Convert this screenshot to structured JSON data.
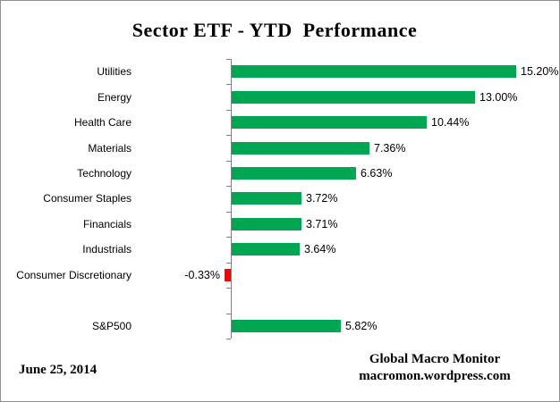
{
  "title": "Sector ETF - YTD  Performance",
  "footer": {
    "date": "June 25, 2014",
    "credit_line1": "Global Macro Monitor",
    "credit_line2": "macromon.wordpress.com"
  },
  "colors": {
    "positive_bar": "#00A651",
    "negative_bar": "#FF0000",
    "axis": "#808080",
    "border": "#8F8F8F"
  },
  "chart_data": {
    "type": "bar",
    "orientation": "horizontal",
    "title": "Sector ETF - YTD  Performance",
    "categories": [
      "Utilities",
      "Energy",
      "Health Care",
      "Materials",
      "Technology",
      "Consumer Staples",
      "Financials",
      "Industrials",
      "Consumer Discretionary",
      "",
      "S&P500"
    ],
    "values": [
      15.2,
      13.0,
      10.44,
      7.36,
      6.63,
      3.72,
      3.71,
      3.64,
      -0.33,
      null,
      5.82
    ],
    "value_labels": [
      "15.20%",
      "13.00%",
      "10.44%",
      "7.36%",
      "6.63%",
      "3.72%",
      "3.71%",
      "3.64%",
      "-0.33%",
      "",
      "5.82%"
    ],
    "unit": "%",
    "xlim": [
      -1.5,
      17.5
    ],
    "grid": false,
    "legend": "none",
    "notes": "Empty category slot separates sector bars from S&P500 benchmark bar"
  }
}
